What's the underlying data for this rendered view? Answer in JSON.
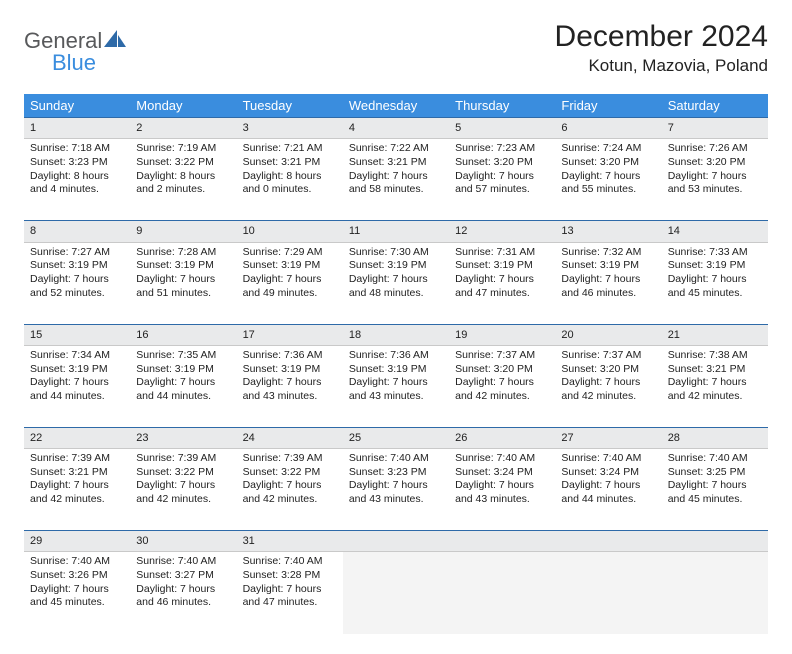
{
  "logo": {
    "line1": "General",
    "line2": "Blue",
    "sail_color": "#2e6aa8"
  },
  "title": "December 2024",
  "location": "Kotun, Mazovia, Poland",
  "colors": {
    "header_bg": "#3a8dde",
    "header_text": "#ffffff",
    "daynum_bg": "#e9eaeb",
    "daynum_border_top": "#2e6aa8",
    "empty_bg": "#f4f4f4",
    "body_text": "#222222"
  },
  "day_headers": [
    "Sunday",
    "Monday",
    "Tuesday",
    "Wednesday",
    "Thursday",
    "Friday",
    "Saturday"
  ],
  "weeks": [
    [
      {
        "n": "1",
        "sr": "7:18 AM",
        "ss": "3:23 PM",
        "dl": "8 hours and 4 minutes."
      },
      {
        "n": "2",
        "sr": "7:19 AM",
        "ss": "3:22 PM",
        "dl": "8 hours and 2 minutes."
      },
      {
        "n": "3",
        "sr": "7:21 AM",
        "ss": "3:21 PM",
        "dl": "8 hours and 0 minutes."
      },
      {
        "n": "4",
        "sr": "7:22 AM",
        "ss": "3:21 PM",
        "dl": "7 hours and 58 minutes."
      },
      {
        "n": "5",
        "sr": "7:23 AM",
        "ss": "3:20 PM",
        "dl": "7 hours and 57 minutes."
      },
      {
        "n": "6",
        "sr": "7:24 AM",
        "ss": "3:20 PM",
        "dl": "7 hours and 55 minutes."
      },
      {
        "n": "7",
        "sr": "7:26 AM",
        "ss": "3:20 PM",
        "dl": "7 hours and 53 minutes."
      }
    ],
    [
      {
        "n": "8",
        "sr": "7:27 AM",
        "ss": "3:19 PM",
        "dl": "7 hours and 52 minutes."
      },
      {
        "n": "9",
        "sr": "7:28 AM",
        "ss": "3:19 PM",
        "dl": "7 hours and 51 minutes."
      },
      {
        "n": "10",
        "sr": "7:29 AM",
        "ss": "3:19 PM",
        "dl": "7 hours and 49 minutes."
      },
      {
        "n": "11",
        "sr": "7:30 AM",
        "ss": "3:19 PM",
        "dl": "7 hours and 48 minutes."
      },
      {
        "n": "12",
        "sr": "7:31 AM",
        "ss": "3:19 PM",
        "dl": "7 hours and 47 minutes."
      },
      {
        "n": "13",
        "sr": "7:32 AM",
        "ss": "3:19 PM",
        "dl": "7 hours and 46 minutes."
      },
      {
        "n": "14",
        "sr": "7:33 AM",
        "ss": "3:19 PM",
        "dl": "7 hours and 45 minutes."
      }
    ],
    [
      {
        "n": "15",
        "sr": "7:34 AM",
        "ss": "3:19 PM",
        "dl": "7 hours and 44 minutes."
      },
      {
        "n": "16",
        "sr": "7:35 AM",
        "ss": "3:19 PM",
        "dl": "7 hours and 44 minutes."
      },
      {
        "n": "17",
        "sr": "7:36 AM",
        "ss": "3:19 PM",
        "dl": "7 hours and 43 minutes."
      },
      {
        "n": "18",
        "sr": "7:36 AM",
        "ss": "3:19 PM",
        "dl": "7 hours and 43 minutes."
      },
      {
        "n": "19",
        "sr": "7:37 AM",
        "ss": "3:20 PM",
        "dl": "7 hours and 42 minutes."
      },
      {
        "n": "20",
        "sr": "7:37 AM",
        "ss": "3:20 PM",
        "dl": "7 hours and 42 minutes."
      },
      {
        "n": "21",
        "sr": "7:38 AM",
        "ss": "3:21 PM",
        "dl": "7 hours and 42 minutes."
      }
    ],
    [
      {
        "n": "22",
        "sr": "7:39 AM",
        "ss": "3:21 PM",
        "dl": "7 hours and 42 minutes."
      },
      {
        "n": "23",
        "sr": "7:39 AM",
        "ss": "3:22 PM",
        "dl": "7 hours and 42 minutes."
      },
      {
        "n": "24",
        "sr": "7:39 AM",
        "ss": "3:22 PM",
        "dl": "7 hours and 42 minutes."
      },
      {
        "n": "25",
        "sr": "7:40 AM",
        "ss": "3:23 PM",
        "dl": "7 hours and 43 minutes."
      },
      {
        "n": "26",
        "sr": "7:40 AM",
        "ss": "3:24 PM",
        "dl": "7 hours and 43 minutes."
      },
      {
        "n": "27",
        "sr": "7:40 AM",
        "ss": "3:24 PM",
        "dl": "7 hours and 44 minutes."
      },
      {
        "n": "28",
        "sr": "7:40 AM",
        "ss": "3:25 PM",
        "dl": "7 hours and 45 minutes."
      }
    ],
    [
      {
        "n": "29",
        "sr": "7:40 AM",
        "ss": "3:26 PM",
        "dl": "7 hours and 45 minutes."
      },
      {
        "n": "30",
        "sr": "7:40 AM",
        "ss": "3:27 PM",
        "dl": "7 hours and 46 minutes."
      },
      {
        "n": "31",
        "sr": "7:40 AM",
        "ss": "3:28 PM",
        "dl": "7 hours and 47 minutes."
      },
      null,
      null,
      null,
      null
    ]
  ],
  "labels": {
    "sunrise": "Sunrise: ",
    "sunset": "Sunset: ",
    "daylight": "Daylight: "
  }
}
